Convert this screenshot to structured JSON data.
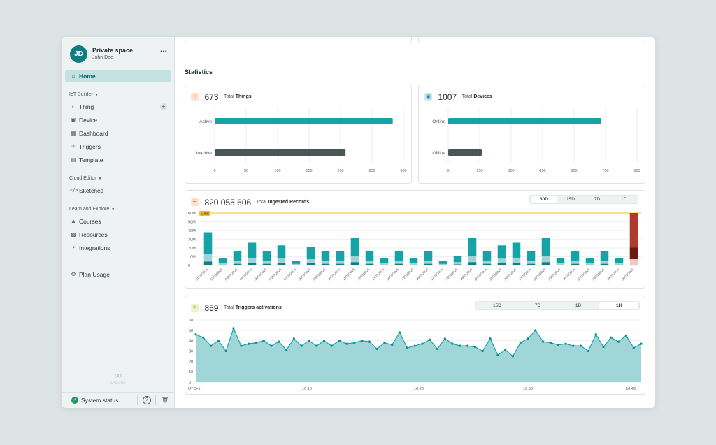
{
  "workspace": {
    "initials": "JD",
    "name": "Private space",
    "user": "John Doe",
    "more_icon": "more-dots-icon"
  },
  "nav": {
    "home": "Home",
    "iot_builder": {
      "title": "IoT Builder",
      "items": [
        "Thing",
        "Device",
        "Dashboard",
        "Triggers",
        "Template"
      ]
    },
    "cloud_editor": {
      "title": "Cloud Editor",
      "items": [
        "Sketches"
      ]
    },
    "learn": {
      "title": "Learn and Explore",
      "items": [
        "Courses",
        "Resources",
        "Integrations"
      ]
    },
    "plan_usage": "Plan Usage"
  },
  "brand": {
    "logo_text": "ARDUINO"
  },
  "footer": {
    "system_status": "System status"
  },
  "colors": {
    "accent": "#15a3a8",
    "dark_bar": "#4a5558",
    "limit": "#f2c31b",
    "over_limit": "#b03a2e"
  },
  "main": {
    "statistics_title": "Statistics"
  },
  "things": {
    "total": "673",
    "label_prefix": "Total",
    "label_bold": "Things",
    "chart_data": {
      "type": "bar",
      "orientation": "horizontal",
      "categories": [
        "Active",
        "Inactive"
      ],
      "values": [
        283,
        208
      ],
      "x_ticks": [
        "0",
        "50",
        "100",
        "150",
        "200",
        "250",
        "300"
      ],
      "xlim": [
        0,
        300
      ]
    }
  },
  "devices": {
    "total": "1007",
    "label_prefix": "Total",
    "label_bold": "Devices",
    "chart_data": {
      "type": "bar",
      "orientation": "horizontal",
      "categories": [
        "Online",
        "Offline"
      ],
      "values": [
        730,
        160
      ],
      "x_ticks": [
        "0",
        "150",
        "300",
        "450",
        "600",
        "750",
        "900"
      ],
      "xlim": [
        0,
        900
      ]
    }
  },
  "records": {
    "total": "820.055.606",
    "label_prefix": "Total",
    "label_bold": "Ingested Records",
    "ranges": [
      "30D",
      "15D",
      "7D",
      "1D"
    ],
    "selected_range": "30D",
    "limit_label": "Limit",
    "chart_data": {
      "type": "bar",
      "stacked": true,
      "ylim": [
        0,
        60
      ],
      "limit": 60,
      "y_ticks": [
        "60M",
        "50M",
        "40M",
        "30M",
        "20M",
        "10M",
        "0"
      ],
      "categories": [
        "01/03/2026",
        "02/03/2026",
        "03/03/2026",
        "04/03/2026",
        "05/03/2026",
        "06/03/2026",
        "07/03/2026",
        "08/03/2026",
        "09/03/2026",
        "10/03/2026",
        "11/03/2026",
        "12/03/2026",
        "13/03/2026",
        "14/03/2026",
        "15/03/2026",
        "16/03/2026",
        "17/03/2026",
        "18/03/2026",
        "19/03/2026",
        "20/03/2026",
        "21/03/2026",
        "22/03/2026",
        "23/03/2026",
        "24/03/2026",
        "25/03/2026",
        "26/03/2026",
        "27/03/2026",
        "28/03/2026",
        "29/03/2026",
        "30/03/2026"
      ],
      "values": [
        38,
        8,
        16,
        26,
        16,
        23,
        5,
        21,
        16,
        16,
        32,
        16,
        8,
        16,
        8,
        16,
        5,
        11,
        32,
        16,
        23,
        26,
        16,
        32,
        8,
        16,
        8,
        16,
        8,
        60
      ]
    }
  },
  "triggers": {
    "total": "859",
    "label_prefix": "Total",
    "label_bold": "Triggers activations",
    "ranges": [
      "15D",
      "7D",
      "1D",
      "1H"
    ],
    "selected_range": "1H",
    "chart_data": {
      "type": "area",
      "ylim": [
        0,
        60
      ],
      "y_ticks": [
        "60",
        "50",
        "40",
        "30",
        "20",
        "10",
        "0"
      ],
      "x_ticks": [
        "UTC+1",
        "16:10",
        "16:20",
        "16:30",
        "16:40"
      ],
      "values": [
        46,
        43,
        35,
        40,
        30,
        52,
        35,
        37,
        38,
        40,
        35,
        39,
        31,
        42,
        35,
        40,
        35,
        40,
        35,
        40,
        37,
        38,
        40,
        39,
        32,
        38,
        36,
        48,
        33,
        35,
        37,
        41,
        32,
        42,
        37,
        35,
        35,
        34,
        30,
        42,
        26,
        31,
        25,
        38,
        42,
        50,
        39,
        38,
        36,
        37,
        35,
        35,
        30,
        46,
        34,
        43,
        39,
        45,
        33,
        37
      ]
    }
  }
}
